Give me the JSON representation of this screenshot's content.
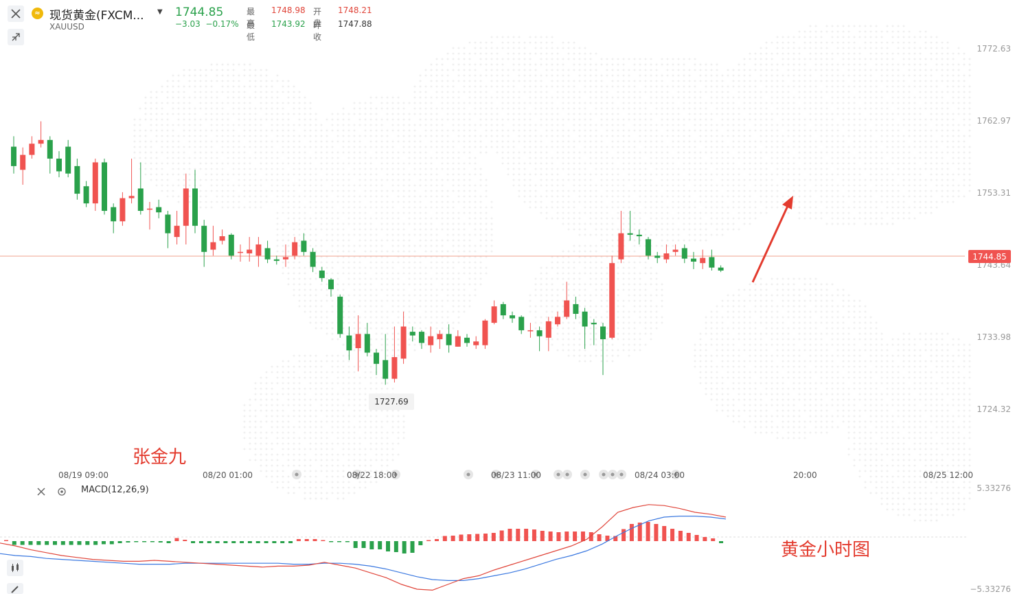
{
  "header": {
    "symbol_name": "现货黄金(FXCM...",
    "symbol_code": "XAUUSD",
    "coin_glyph": "≈",
    "dropdown_glyph": "▼",
    "price": "1744.85",
    "change": "−3.03",
    "change_pct": "−0.17%",
    "high_label": "最高",
    "high": "1748.98",
    "open_label": "开盘",
    "open": "1748.21",
    "low_label": "最低",
    "low": "1743.92",
    "prev_label": "昨收",
    "prev_close": "1747.88"
  },
  "colors": {
    "up": "#f05350",
    "down": "#2aa14b",
    "macd_dif": "#e0453a",
    "macd_dea": "#3a78e0",
    "annotation": "#e33b2e"
  },
  "y_axis": [
    "1772.63",
    "1762.97",
    "1753.31",
    "1743.64",
    "1733.98",
    "1724.32"
  ],
  "x_axis": [
    "08/19 09:00",
    "08/20 01:00",
    "08/22 18:00",
    "08/23 11:00",
    "08/24 03:00",
    "20:00",
    "08/25 12:00"
  ],
  "current_price_tag": "1744.85",
  "min_tag": "1727.69",
  "annotations": {
    "author": "张金九",
    "caption": "黄金小时图"
  },
  "macd": {
    "label": "MACD(12,26,9)",
    "top": "5.33276",
    "bottom": "−5.33276"
  },
  "chart_data": {
    "type": "candlestick",
    "title": "现货黄金(FXCM...",
    "ylim": [
      1722.6,
      1775.6
    ],
    "candles": [
      [
        1759.6,
        1757.0,
        1761.0,
        1756.0
      ],
      [
        1756.5,
        1758.5,
        1759.5,
        1754.5
      ],
      [
        1758.5,
        1760.0,
        1761.0,
        1758.0
      ],
      [
        1760.0,
        1760.5,
        1763.0,
        1759.5
      ],
      [
        1760.5,
        1758.0,
        1761.0,
        1756.0
      ],
      [
        1758.0,
        1756.3,
        1759.0,
        1755.5
      ],
      [
        1759.6,
        1756.0,
        1760.5,
        1755.5
      ],
      [
        1757.0,
        1753.3,
        1758.0,
        1752.5
      ],
      [
        1754.3,
        1752.0,
        1755.0,
        1751.5
      ],
      [
        1752.0,
        1757.5,
        1758.0,
        1751.0
      ],
      [
        1757.5,
        1751.0,
        1758.0,
        1750.5
      ],
      [
        1751.5,
        1749.6,
        1752.0,
        1748.0
      ],
      [
        1749.6,
        1752.7,
        1753.5,
        1749.0
      ],
      [
        1752.7,
        1753.0,
        1758.0,
        1752.0
      ],
      [
        1754.0,
        1751.0,
        1757.5,
        1750.5
      ],
      [
        1751.3,
        1751.3,
        1752.2,
        1748.5
      ],
      [
        1751.5,
        1750.8,
        1752.5,
        1750.0
      ],
      [
        1750.5,
        1748.0,
        1751.0,
        1746.0
      ],
      [
        1747.5,
        1749.0,
        1751.0,
        1746.5
      ],
      [
        1749.0,
        1754.0,
        1756.0,
        1746.5
      ],
      [
        1754.0,
        1749.0,
        1756.5,
        1748.0
      ],
      [
        1749.0,
        1745.5,
        1749.8,
        1743.5
      ],
      [
        1745.8,
        1746.8,
        1749.0,
        1745.0
      ],
      [
        1747.0,
        1747.6,
        1748.5,
        1746.5
      ],
      [
        1747.8,
        1745.0,
        1748.0,
        1744.5
      ],
      [
        1745.5,
        1745.5,
        1746.5,
        1744.2
      ],
      [
        1745.3,
        1745.8,
        1747.5,
        1744.2
      ],
      [
        1745.0,
        1746.5,
        1747.5,
        1743.5
      ],
      [
        1746.0,
        1744.5,
        1747.0,
        1744.0
      ],
      [
        1744.5,
        1744.3,
        1745.0,
        1743.8
      ],
      [
        1744.5,
        1744.8,
        1746.5,
        1743.5
      ],
      [
        1745.0,
        1746.8,
        1747.5,
        1744.5
      ],
      [
        1747.0,
        1745.5,
        1748.0,
        1745.0
      ],
      [
        1745.5,
        1743.5,
        1746.0,
        1742.8
      ],
      [
        1743.0,
        1742.0,
        1743.5,
        1741.5
      ],
      [
        1741.8,
        1740.5,
        1742.0,
        1739.5
      ],
      [
        1739.5,
        1734.5,
        1739.8,
        1734.0
      ],
      [
        1734.3,
        1732.3,
        1735.5,
        1731.0
      ],
      [
        1732.6,
        1734.5,
        1737.0,
        1729.5
      ],
      [
        1734.5,
        1732.0,
        1736.0,
        1731.5
      ],
      [
        1732.0,
        1730.5,
        1732.5,
        1729.0
      ],
      [
        1731.0,
        1728.5,
        1734.5,
        1727.7
      ],
      [
        1728.5,
        1731.4,
        1735.5,
        1728.0
      ],
      [
        1731.2,
        1735.5,
        1737.5,
        1730.5
      ],
      [
        1734.8,
        1734.3,
        1735.5,
        1733.5
      ],
      [
        1734.8,
        1733.3,
        1735.0,
        1732.5
      ],
      [
        1733.0,
        1734.2,
        1735.5,
        1732.0
      ],
      [
        1733.8,
        1734.5,
        1735.0,
        1732.5
      ],
      [
        1734.5,
        1733.0,
        1735.8,
        1732.0
      ],
      [
        1732.8,
        1734.2,
        1735.0,
        1732.8
      ],
      [
        1734.0,
        1733.3,
        1734.5,
        1732.8
      ],
      [
        1733.0,
        1733.5,
        1734.2,
        1732.5
      ],
      [
        1733.0,
        1736.3,
        1736.5,
        1732.5
      ],
      [
        1736.0,
        1738.2,
        1739.0,
        1735.8
      ],
      [
        1738.5,
        1737.0,
        1738.8,
        1736.5
      ],
      [
        1737.0,
        1736.6,
        1737.5,
        1736.0
      ],
      [
        1736.8,
        1735.0,
        1737.0,
        1734.5
      ],
      [
        1735.0,
        1735.0,
        1736.0,
        1734.0
      ],
      [
        1735.0,
        1734.2,
        1735.5,
        1732.2
      ],
      [
        1734.0,
        1736.2,
        1736.8,
        1732.2
      ],
      [
        1735.8,
        1736.8,
        1737.5,
        1735.5
      ],
      [
        1736.8,
        1739.0,
        1741.5,
        1736.5
      ],
      [
        1738.5,
        1737.2,
        1739.5,
        1736.5
      ],
      [
        1737.5,
        1735.5,
        1738.0,
        1732.5
      ],
      [
        1736.0,
        1735.8,
        1736.5,
        1733.0
      ],
      [
        1735.5,
        1733.8,
        1736.0,
        1729.0
      ],
      [
        1734.0,
        1744.0,
        1745.0,
        1733.8
      ],
      [
        1744.5,
        1748.0,
        1751.0,
        1744.0
      ],
      [
        1748.0,
        1747.8,
        1751.0,
        1747.0
      ],
      [
        1747.8,
        1747.6,
        1748.5,
        1746.5
      ],
      [
        1747.2,
        1745.0,
        1747.5,
        1744.5
      ],
      [
        1745.0,
        1744.7,
        1745.5,
        1744.0
      ],
      [
        1744.5,
        1745.3,
        1746.5,
        1744.0
      ],
      [
        1745.5,
        1745.8,
        1746.5,
        1745.0
      ],
      [
        1746.0,
        1744.6,
        1746.5,
        1744.0
      ],
      [
        1744.6,
        1744.2,
        1745.5,
        1743.2
      ],
      [
        1744.0,
        1744.7,
        1745.8,
        1743.2
      ],
      [
        1744.8,
        1743.4,
        1745.8,
        1743.0
      ],
      [
        1743.4,
        1743.0,
        1743.7,
        1742.8
      ]
    ],
    "macd_hist": [
      0.1,
      -0.55,
      -0.55,
      -0.55,
      -0.55,
      -0.55,
      -0.55,
      -0.55,
      -0.55,
      -0.55,
      -0.55,
      -0.55,
      -0.45,
      -0.45,
      -0.3,
      -0.2,
      -0.1,
      -0.1,
      -0.1,
      -0.2,
      -0.3,
      0.45,
      0.2,
      -0.3,
      -0.3,
      -0.3,
      -0.3,
      -0.3,
      -0.3,
      -0.3,
      -0.3,
      -0.3,
      -0.3,
      -0.3,
      -0.3,
      -0.3,
      0.3,
      0.3,
      0.3,
      0.1,
      -0.1,
      -0.1,
      -0.1,
      -1.0,
      -1.0,
      -1.2,
      -1.2,
      -1.5,
      -1.6,
      -1.8,
      -1.7,
      -0.6,
      0.1,
      0.3,
      0.75,
      0.8,
      0.95,
      1.0,
      1.05,
      1.1,
      1.2,
      1.55,
      1.8,
      1.8,
      1.8,
      1.7,
      1.5,
      1.4,
      1.3,
      1.4,
      1.4,
      1.4,
      1.3,
      1.0,
      0.8,
      0.75,
      1.75,
      2.5,
      2.7,
      2.8,
      2.5,
      2.2,
      1.8,
      1.5,
      1.2,
      0.9,
      0.6,
      0.4,
      -0.3
    ],
    "macd_dif": [
      -0.2,
      -0.5,
      -0.9,
      -1.2,
      -1.5,
      -1.7,
      -1.9,
      -2.0,
      -2.1,
      -2.1,
      -2.0,
      -2.1,
      -2.2,
      -2.3,
      -2.4,
      -2.5,
      -2.6,
      -2.7,
      -2.6,
      -2.6,
      -2.5,
      -2.2,
      -2.5,
      -2.8,
      -3.3,
      -3.8,
      -4.5,
      -5.0,
      -5.1,
      -4.5,
      -3.9,
      -3.6,
      -3.0,
      -2.5,
      -2.0,
      -1.5,
      -1.0,
      -0.5,
      0.2,
      1.5,
      3.0,
      3.5,
      3.8,
      3.7,
      3.4,
      3.0,
      2.8,
      2.5
    ],
    "macd_dea": [
      -1.3,
      -1.5,
      -1.6,
      -1.8,
      -1.9,
      -2.0,
      -2.1,
      -2.2,
      -2.3,
      -2.4,
      -2.4,
      -2.4,
      -2.3,
      -2.3,
      -2.3,
      -2.3,
      -2.3,
      -2.3,
      -2.3,
      -2.4,
      -2.4,
      -2.3,
      -2.3,
      -2.4,
      -2.6,
      -2.9,
      -3.3,
      -3.7,
      -4.0,
      -4.1,
      -4.1,
      -3.9,
      -3.6,
      -3.3,
      -2.9,
      -2.4,
      -1.9,
      -1.5,
      -1.0,
      -0.3,
      0.6,
      1.4,
      2.1,
      2.5,
      2.6,
      2.6,
      2.5,
      2.3
    ]
  }
}
